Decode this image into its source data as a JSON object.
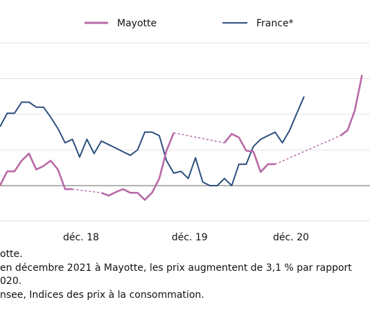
{
  "chart_data": {
    "type": "line",
    "y_scale_note": "no y tick labels visible",
    "xticks": [
      "déc. 18",
      "déc. 19",
      "déc. 20"
    ],
    "gridlines_y": [
      1,
      2,
      3,
      4
    ],
    "baseline_y": 0,
    "ylim": [
      -1,
      4
    ],
    "xlim": [
      0,
      51
    ],
    "legend_position": "top",
    "series": [
      {
        "name": "Mayotte",
        "color": "#b868a6",
        "segments": [
          {
            "style": "solid",
            "points": [
              [
                0,
                0
              ],
              [
                1,
                0.4
              ],
              [
                2,
                0.4
              ],
              [
                3,
                0.7
              ],
              [
                4,
                0.9
              ],
              [
                5,
                0.45
              ],
              [
                6,
                0.55
              ],
              [
                7,
                0.7
              ],
              [
                8,
                0.45
              ],
              [
                9,
                -0.1
              ],
              [
                10,
                -0.1
              ]
            ]
          },
          {
            "style": "dashed",
            "points": [
              [
                10,
                -0.1
              ],
              [
                14,
                -0.2
              ]
            ]
          },
          {
            "style": "solid",
            "points": [
              [
                14,
                -0.2
              ],
              [
                15,
                -0.28
              ],
              [
                16,
                -0.18
              ],
              [
                17,
                -0.1
              ],
              [
                18,
                -0.2
              ],
              [
                19,
                -0.2
              ],
              [
                20,
                -0.4
              ],
              [
                21,
                -0.2
              ],
              [
                22,
                0.2
              ],
              [
                23,
                0.98
              ],
              [
                24,
                1.48
              ]
            ]
          },
          {
            "style": "dashed",
            "points": [
              [
                24,
                1.48
              ],
              [
                31,
                1.2
              ]
            ]
          },
          {
            "style": "solid",
            "points": [
              [
                31,
                1.2
              ],
              [
                32,
                1.45
              ],
              [
                33,
                1.35
              ],
              [
                34,
                0.98
              ],
              [
                35,
                0.95
              ],
              [
                36,
                0.38
              ],
              [
                37,
                0.6
              ],
              [
                38,
                0.6
              ]
            ]
          },
          {
            "style": "dashed",
            "points": [
              [
                38,
                0.6
              ],
              [
                47,
                1.4
              ]
            ]
          },
          {
            "style": "solid",
            "points": [
              [
                47,
                1.4
              ],
              [
                48,
                1.55
              ],
              [
                49,
                2.1
              ],
              [
                50,
                3.1
              ]
            ]
          }
        ]
      },
      {
        "name": "France*",
        "color": "#2b4e7e",
        "segments": [
          {
            "style": "solid",
            "points": [
              [
                0,
                1.65
              ],
              [
                1,
                2.03
              ],
              [
                2,
                2.03
              ],
              [
                3,
                2.34
              ],
              [
                4,
                2.34
              ],
              [
                5,
                2.2
              ],
              [
                6,
                2.2
              ],
              [
                7,
                1.92
              ],
              [
                8,
                1.6
              ],
              [
                9,
                1.2
              ],
              [
                10,
                1.3
              ],
              [
                11,
                0.8
              ],
              [
                12,
                1.3
              ],
              [
                13,
                0.9
              ],
              [
                14,
                1.25
              ],
              [
                15,
                1.15
              ],
              [
                16,
                1.05
              ],
              [
                17,
                0.95
              ],
              [
                18,
                0.85
              ],
              [
                19,
                1.0
              ],
              [
                20,
                1.5
              ],
              [
                21,
                1.5
              ],
              [
                22,
                1.4
              ],
              [
                23,
                0.7
              ],
              [
                24,
                0.35
              ],
              [
                25,
                0.4
              ],
              [
                26,
                0.2
              ],
              [
                27,
                0.78
              ],
              [
                28,
                0.1
              ],
              [
                29,
                0.0
              ],
              [
                30,
                0.0
              ],
              [
                31,
                0.2
              ],
              [
                32,
                0.0
              ],
              [
                33,
                0.6
              ],
              [
                34,
                0.6
              ],
              [
                35,
                1.1
              ],
              [
                36,
                1.3
              ],
              [
                37,
                1.4
              ],
              [
                38,
                1.5
              ],
              [
                39,
                1.2
              ],
              [
                40,
                1.55
              ],
              [
                41,
                2.03
              ],
              [
                42,
                2.5
              ]
            ]
          }
        ]
      }
    ]
  },
  "notes": {
    "line1": "otte.",
    "line2": "en décembre 2021 à Mayotte, les prix augmentent de 3,1 % par rapport",
    "line3": "020.",
    "line4": "nsee, Indices des prix à la consommation."
  }
}
